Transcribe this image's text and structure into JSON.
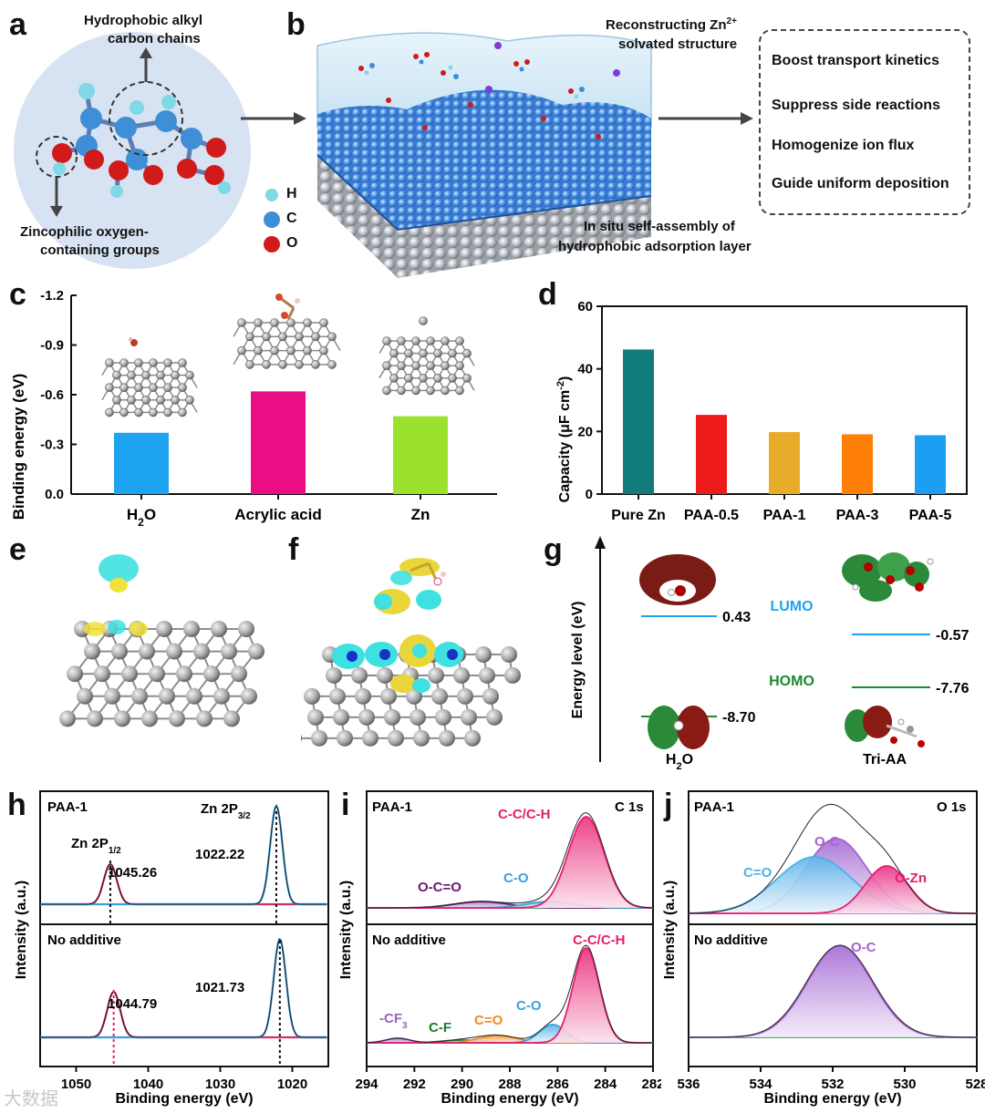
{
  "panels": {
    "a": "a",
    "b": "b",
    "c": "c",
    "d": "d",
    "e": "e",
    "f": "f",
    "g": "g",
    "h": "h",
    "i": "i",
    "j": "j"
  },
  "panel_a": {
    "top_label_1": "Hydrophobic alkyl",
    "top_label_2": "carbon chains",
    "bottom_label_1": "Zincophilic oxygen-",
    "bottom_label_2": "containing groups",
    "legend": {
      "h": "H",
      "c": "C",
      "o": "O"
    },
    "colors": {
      "h": "#7fd9e6",
      "c": "#3f8fd6",
      "o": "#d11a1a",
      "bg": "#d7e2f2"
    }
  },
  "panel_b": {
    "top_label_1": "Reconstructing Zn",
    "top_label_sup": "2+",
    "top_label_2": "solvated structure",
    "bottom_label_1": "In situ self-assembly of",
    "bottom_label_2": "hydrophobic adsorption layer",
    "effects": [
      "Boost transport kinetics",
      "Suppress side reactions",
      "Homogenize ion flux",
      "Guide uniform deposition"
    ]
  },
  "chart_data": [
    {
      "id": "c",
      "type": "bar",
      "ylabel": "Binding energy (eV)",
      "categories": [
        "H2O",
        "Acrylic acid",
        "Zn"
      ],
      "category_labels": [
        "H",
        "Acrylic acid",
        "Zn"
      ],
      "values": [
        -0.37,
        -0.62,
        -0.47
      ],
      "colors": [
        "#1ea3f0",
        "#ea0d84",
        "#9ae22e"
      ],
      "ylim": [
        0.0,
        -1.2
      ],
      "yticks": [
        "-1.2",
        "-0.9",
        "-0.6",
        "-0.3",
        "0.0"
      ],
      "ytick_values": [
        -1.2,
        -0.9,
        -0.6,
        -0.3,
        0.0
      ]
    },
    {
      "id": "d",
      "type": "bar",
      "ylabel": "Capacity (μF cm",
      "ylabel_sup": "-2",
      "categories": [
        "Pure Zn",
        "PAA-0.5",
        "PAA-1",
        "PAA-3",
        "PAA-5"
      ],
      "values": [
        46.2,
        25.3,
        19.8,
        19.1,
        18.8
      ],
      "colors": [
        "#127c7c",
        "#ee1b1b",
        "#e7ad2a",
        "#ff7f08",
        "#1c9ff2"
      ],
      "ylim": [
        0,
        60
      ],
      "yticks": [
        "0",
        "20",
        "40",
        "60"
      ],
      "ytick_values": [
        0,
        20,
        40,
        60
      ]
    },
    {
      "id": "g",
      "type": "energy-level",
      "ylabel": "Energy level (eV)",
      "lumo_label": "LUMO",
      "homo_label": "HOMO",
      "molecules": [
        {
          "name": "H2O",
          "lumo": "0.43",
          "homo": "-8.70"
        },
        {
          "name": "Tri-AA",
          "lumo": "-0.57",
          "homo": "-7.76"
        }
      ]
    },
    {
      "id": "h",
      "type": "line",
      "ylabel": "Intensity (a.u.)",
      "xlabel": "Binding energy (eV)",
      "xlim": [
        1055,
        1015
      ],
      "xticks": [
        "1050",
        "1040",
        "1030",
        "1020"
      ],
      "xtick_values": [
        1050,
        1040,
        1030,
        1020
      ],
      "top": {
        "sample": "PAA-1",
        "peak1_name": "Zn 2P",
        "peak1_sub": "1/2",
        "peak1_pos": 1045.26,
        "peak1_label": "1045.26",
        "peak2_name": "Zn 2P",
        "peak2_sub": "3/2",
        "peak2_pos": 1022.22,
        "peak2_label": "1022.22"
      },
      "bottom": {
        "sample": "No additive",
        "peak1_pos": 1044.79,
        "peak1_label": "1044.79",
        "peak2_pos": 1021.73,
        "peak2_label": "1021.73"
      }
    },
    {
      "id": "i",
      "type": "line",
      "ylabel": "Intensity (a.u.)",
      "xlabel": "Binding energy (eV)",
      "xlim": [
        294,
        282
      ],
      "xticks": [
        "294",
        "292",
        "290",
        "288",
        "286",
        "284",
        "282"
      ],
      "xtick_values": [
        294,
        292,
        290,
        288,
        286,
        284,
        282
      ],
      "top": {
        "sample": "PAA-1",
        "region": "C 1s",
        "components": [
          "C-C/C-H",
          "C-O",
          "O-C=O"
        ]
      },
      "bottom": {
        "sample": "No additive",
        "components": [
          "C-C/C-H",
          "C-O",
          "C=O",
          "C-F",
          "-CF",
          "3"
        ]
      }
    },
    {
      "id": "j",
      "type": "line",
      "ylabel": "Intensity (a.u.)",
      "xlabel": "Binding energy (eV)",
      "xlim": [
        536,
        528
      ],
      "xticks": [
        "536",
        "534",
        "532",
        "530",
        "528"
      ],
      "xtick_values": [
        536,
        534,
        532,
        530,
        528
      ],
      "top": {
        "sample": "PAA-1",
        "region": "O 1s",
        "components": [
          "O-C",
          "C=O",
          "O-Zn"
        ]
      },
      "bottom": {
        "sample": "No additive",
        "components": [
          "O-C"
        ]
      }
    }
  ],
  "watermark": "大数据"
}
